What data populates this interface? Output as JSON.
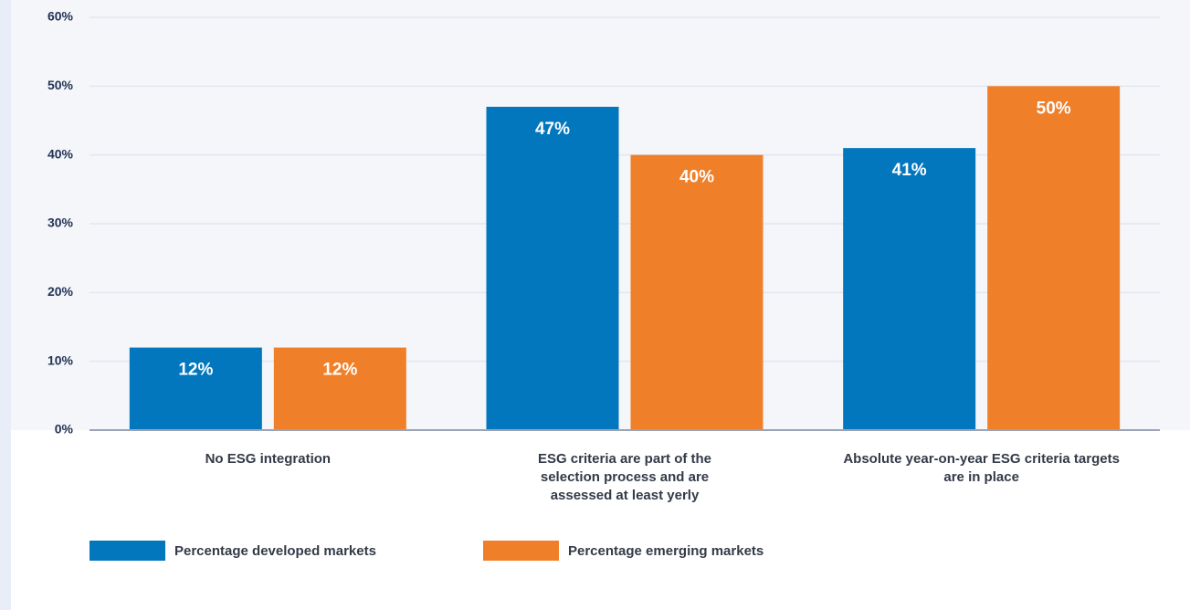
{
  "chart_data": {
    "type": "bar",
    "categories": [
      "No ESG integration",
      "ESG criteria are part of the selection process and are assessed at least yerly",
      "Absolute year-on-year ESG criteria targets are in place"
    ],
    "series": [
      {
        "name": "Percentage developed markets",
        "color": "#0277bd",
        "values": [
          12,
          47,
          41
        ],
        "value_labels": [
          "12%",
          "47%",
          "41%"
        ]
      },
      {
        "name": "Percentage emerging markets",
        "color": "#f07f2a",
        "values": [
          12,
          40,
          50
        ],
        "value_labels": [
          "12%",
          "40%",
          "50%"
        ]
      }
    ],
    "ylim": [
      0,
      60
    ],
    "yticks": [
      {
        "value": 0,
        "label": "0%"
      },
      {
        "value": 10,
        "label": "10%"
      },
      {
        "value": 20,
        "label": "20%"
      },
      {
        "value": 30,
        "label": "30%"
      },
      {
        "value": 40,
        "label": "40%"
      },
      {
        "value": 50,
        "label": "50%"
      },
      {
        "value": 60,
        "label": "60%"
      }
    ],
    "grid": true
  }
}
